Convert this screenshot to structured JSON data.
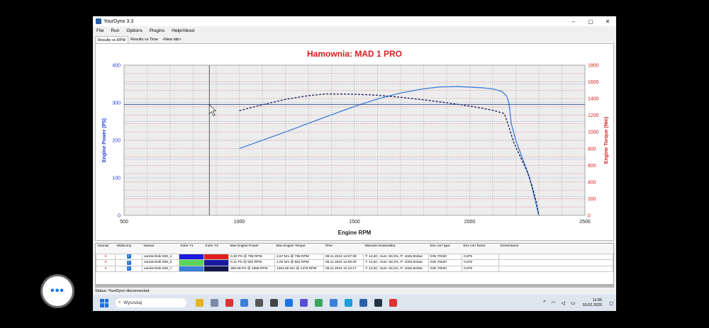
{
  "window": {
    "title": "YourDyno 3.3",
    "controls": [
      "–",
      "▢",
      "✕"
    ]
  },
  "menu": [
    "File",
    "Run",
    "Options",
    "Plugins",
    "Help/About"
  ],
  "tabs": [
    "Results vs RPM",
    "Results vs Time",
    "<New tab>"
  ],
  "chart_data": {
    "type": "line",
    "title": "Hamownia: MAD 1 PRO",
    "xlabel": "Engine RPM",
    "ylabel_left": "Engine Power (PS)",
    "ylabel_right": "Engine Torque (Nm)",
    "xlim": [
      500,
      2500
    ],
    "ylim_left": [
      0,
      400
    ],
    "ylim_right": [
      0,
      1800
    ],
    "x_ticks": [
      "500",
      "1000",
      "1500",
      "2000",
      "2500"
    ],
    "y_left_ticks": [
      "0",
      "100",
      "200",
      "300",
      "400"
    ],
    "y_right_ticks": [
      "0",
      "200",
      "400",
      "600",
      "800",
      "1000",
      "1200",
      "1400",
      "1600",
      "1800"
    ],
    "grid": true,
    "colors": {
      "title": "#d42020",
      "left_axis": "#1f3fd8",
      "right_axis": "#d42020",
      "power": "#3a7fd8",
      "torque": "#1a1a5a"
    },
    "series": [
      {
        "axis": "left",
        "style": "solid",
        "x": [
          1000,
          1100,
          1200,
          1300,
          1400,
          1500,
          1600,
          1700,
          1800,
          1870,
          1950,
          2050,
          2100,
          2140,
          2160,
          2170,
          2180,
          2200,
          2230,
          2260,
          2280,
          2300
        ],
        "y": [
          178,
          200,
          222,
          245,
          268,
          290,
          310,
          326,
          337,
          342,
          343,
          340,
          337,
          330,
          318,
          300,
          245,
          200,
          150,
          100,
          50,
          0
        ]
      },
      {
        "axis": "right",
        "style": "dashed",
        "x": [
          1000,
          1100,
          1200,
          1300,
          1376,
          1500,
          1600,
          1700,
          1800,
          1900,
          2000,
          2100,
          2150,
          2170,
          2190,
          2210,
          2230,
          2250,
          2270,
          2290,
          2300
        ],
        "y": [
          1255,
          1325,
          1390,
          1435,
          1455,
          1452,
          1440,
          1415,
          1385,
          1350,
          1310,
          1260,
          1220,
          1060,
          880,
          760,
          640,
          520,
          360,
          150,
          0
        ]
      }
    ],
    "cursor": {
      "x": 870,
      "y": 295
    }
  },
  "runs_table": {
    "headers": [
      "Usunąć",
      "Widoczny",
      "Nazwa",
      "Kolor Y1",
      "Kolor Y2",
      "Max Engine Power",
      "Max Engine Torque",
      "Time",
      "Warunki środowiska",
      "Env corr type",
      "Env corr factor",
      "Komentarze"
    ],
    "rows": [
      {
        "delete": "X",
        "visible": "✓",
        "name": "varotechnik 936_4",
        "color_y1": "#1a1adc",
        "color_y2": "#e02020",
        "power": "0,30 PS @ 796 RPM",
        "torque": "2,67 Nm @ 796 RPM",
        "time": "08.11.2024 12:07:39",
        "env": "T: 14,6C, Hum: 50,3%, P: 1025,9mbar",
        "corr_type": "DIN 70020",
        "corr_factor": "0,979",
        "comment": ""
      },
      {
        "delete": "X",
        "visible": "✓",
        "name": "varotechnik 936_6",
        "color_y1": "#5ad65a",
        "color_y2": "#1a1aa0",
        "power": "0,11 PS @ 802 RPM",
        "torque": "1,00 Nm @ 802 RPM",
        "time": "08.11.2024 12:09:28",
        "env": "T: 14,6C, Hum: 50,3%, P: 1025,9mbar",
        "corr_type": "DIN 70020",
        "corr_factor": "0,979",
        "comment": ""
      },
      {
        "delete": "X",
        "visible": "✓",
        "name": "varotechnik 936_7",
        "color_y1": "#3a7fd8",
        "color_y2": "#15154f",
        "power": "350,69 PS @ 1868 RPM",
        "torque": "1454,69 Nm @ 1376 RPM",
        "time": "08.11.2024 12:10:17",
        "env": "T: 14,6C, Hum: 50,3%, P: 1025,9mbar",
        "corr_type": "DIN 70020",
        "corr_factor": "0,979",
        "comment": ""
      }
    ]
  },
  "status": "Status: YourDyno disconnected",
  "taskbar": {
    "search_placeholder": "Wyszukaj",
    "icon_colors": [
      "#e6b422",
      "#7a8ba8",
      "#d33",
      "#3a7fd8",
      "#555",
      "#444",
      "#1a73e8",
      "#5a4fcf",
      "#3aa55a",
      "#3a7fd8",
      "#1a9dd8",
      "#2b5fa8",
      "#234",
      "#d33"
    ],
    "time": "11:05",
    "date": "03.02.2025"
  },
  "fab_label": "•••"
}
